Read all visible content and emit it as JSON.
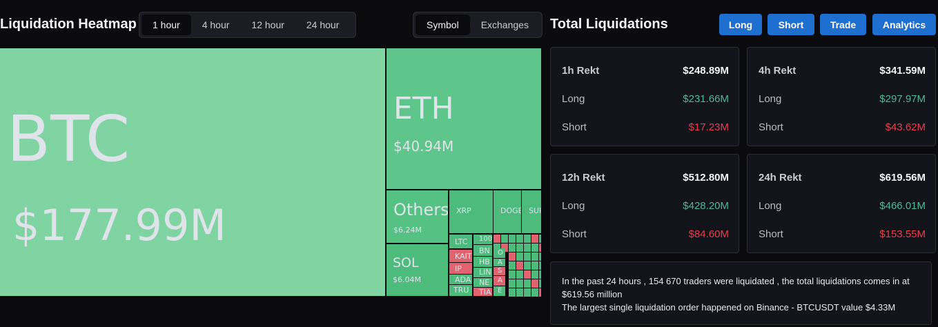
{
  "header": {
    "title": "Liquidation Heatmap",
    "time_tabs": [
      "1 hour",
      "4 hour",
      "12 hour",
      "24 hour"
    ],
    "view_tabs": [
      "Symbol",
      "Exchanges"
    ]
  },
  "heatmap": {
    "tiles": [
      {
        "symbol": "BTC",
        "value": "$177.99M"
      },
      {
        "symbol": "ETH",
        "value": "$40.94M"
      },
      {
        "symbol": "Others",
        "value": "$6.24M"
      },
      {
        "symbol": "SOL",
        "value": "$6.04M"
      },
      {
        "symbol": "XRP"
      },
      {
        "symbol": "DOGE"
      },
      {
        "symbol": "SUI"
      },
      {
        "symbol": "LTC"
      },
      {
        "symbol": "KAIT"
      },
      {
        "symbol": "IP"
      },
      {
        "symbol": "ADA"
      },
      {
        "symbol": "TRU"
      },
      {
        "symbol": "100"
      },
      {
        "symbol": "BN"
      },
      {
        "symbol": "HB"
      },
      {
        "symbol": "LIN"
      },
      {
        "symbol": "NE"
      },
      {
        "symbol": "TIA"
      },
      {
        "symbol": "O"
      },
      {
        "symbol": "A"
      },
      {
        "symbol": "S"
      },
      {
        "symbol": "A"
      },
      {
        "symbol": "E"
      }
    ]
  },
  "summary": {
    "title": "Total Liquidations",
    "buttons": [
      "Long",
      "Short",
      "Trade",
      "Analytics"
    ],
    "cards": [
      {
        "title": "1h Rekt",
        "total": "$248.89M",
        "rows": [
          {
            "label": "Long",
            "value": "$231.66M"
          },
          {
            "label": "Short",
            "value": "$17.23M"
          }
        ]
      },
      {
        "title": "4h Rekt",
        "total": "$341.59M",
        "rows": [
          {
            "label": "Long",
            "value": "$297.97M"
          },
          {
            "label": "Short",
            "value": "$43.62M"
          }
        ]
      },
      {
        "title": "12h Rekt",
        "total": "$512.80M",
        "rows": [
          {
            "label": "Long",
            "value": "$428.20M"
          },
          {
            "label": "Short",
            "value": "$84.60M"
          }
        ]
      },
      {
        "title": "24h Rekt",
        "total": "$619.56M",
        "rows": [
          {
            "label": "Long",
            "value": "$466.01M"
          },
          {
            "label": "Short",
            "value": "$153.55M"
          }
        ]
      }
    ],
    "info": [
      "In the past 24 hours , 154 670 traders were liquidated , the total liquidations comes in at $619.56 million",
      "The largest single liquidation order happened on Binance - BTCUSDT value $4.33M"
    ]
  }
}
